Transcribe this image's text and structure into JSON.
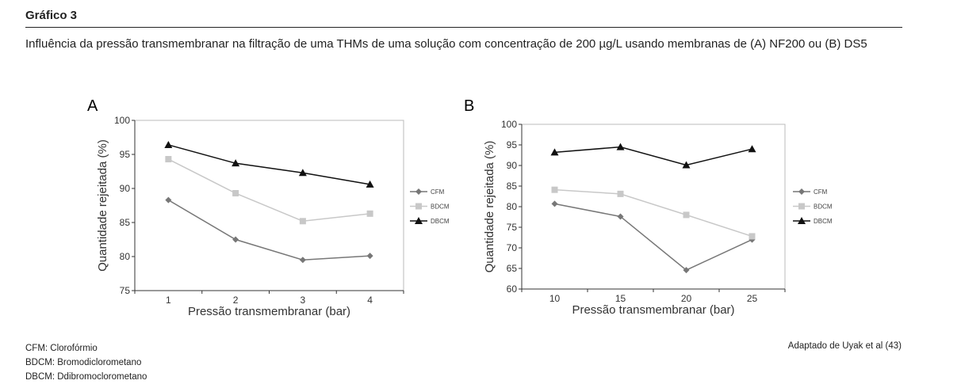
{
  "title": "Gráfico 3",
  "subtitle": "Influência da pressão transmembranar na filtração de uma THMs de uma solução com concentração de 200 µg/L usando membranas de (A) NF200 ou (B) DS5",
  "notes": [
    "CFM: Clorofórmio",
    "BDCM: Bromodiclorometano",
    "DBCM: Ddibromoclorometano"
  ],
  "credit": "Adaptado de Uyak et al (43)",
  "colors": {
    "CFM": "#777777",
    "BDCM": "#c8c8c8",
    "DBCM": "#111111"
  },
  "chart_data": [
    {
      "type": "line",
      "panel": "A",
      "xlabel": "Pressão transmembranar (bar)",
      "ylabel": "Quantidade rejeitada (%)",
      "categories": [
        "1",
        "2",
        "3",
        "4"
      ],
      "ylim": [
        75,
        100
      ],
      "yticks": [
        "75",
        "80",
        "85",
        "90",
        "95",
        "100"
      ],
      "legend": "right",
      "series": [
        {
          "name": "CFM",
          "marker": "diamond",
          "values": [
            88.3,
            82.5,
            79.5,
            80.1
          ]
        },
        {
          "name": "BDCM",
          "marker": "square",
          "values": [
            94.3,
            89.3,
            85.2,
            86.3
          ]
        },
        {
          "name": "DBCM",
          "marker": "triangle",
          "values": [
            96.4,
            93.7,
            92.3,
            90.6
          ]
        }
      ]
    },
    {
      "type": "line",
      "panel": "B",
      "xlabel": "Pressão transmembranar (bar)",
      "ylabel": "Quantidade rejeitada (%)",
      "categories": [
        "10",
        "15",
        "20",
        "25"
      ],
      "ylim": [
        60,
        100
      ],
      "yticks": [
        "60",
        "65",
        "70",
        "75",
        "80",
        "85",
        "90",
        "95",
        "100"
      ],
      "legend": "right",
      "series": [
        {
          "name": "CFM",
          "marker": "diamond",
          "values": [
            80.7,
            77.6,
            64.6,
            72.0
          ]
        },
        {
          "name": "BDCM",
          "marker": "square",
          "values": [
            84.1,
            83.1,
            78.0,
            72.8
          ]
        },
        {
          "name": "DBCM",
          "marker": "triangle",
          "values": [
            93.2,
            94.5,
            90.1,
            94.0
          ]
        }
      ]
    }
  ]
}
